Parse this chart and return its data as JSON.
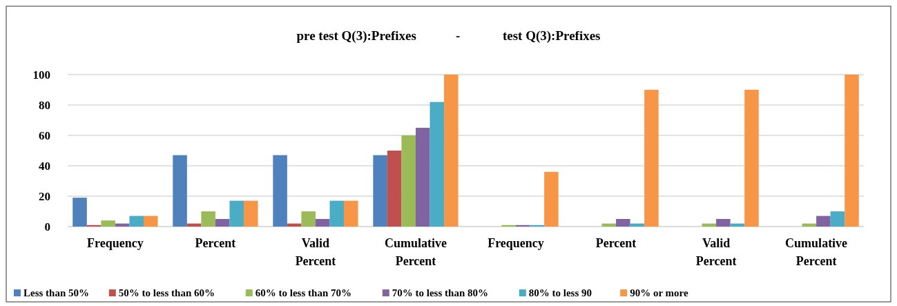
{
  "chart_data": {
    "type": "bar",
    "title": "pre test Q(3):Prefixes            -             test Q(3):Prefixes",
    "categories": [
      "Frequency",
      "Percent",
      "Valid Percent",
      "Cumulative Percent",
      "Frequency",
      "Percent",
      "Valid Percent",
      "Cumulative Percent"
    ],
    "series": [
      {
        "name": "Less than 50%",
        "color": "#4f81bd",
        "values": [
          19,
          47,
          47,
          47,
          null,
          null,
          null,
          null
        ]
      },
      {
        "name": "50% to less than 60%",
        "color": "#c0504d",
        "values": [
          1,
          2,
          2,
          50,
          null,
          null,
          null,
          null
        ]
      },
      {
        "name": "60% to less than 70%",
        "color": "#9bbb59",
        "values": [
          4,
          10,
          10,
          60,
          1,
          2,
          2,
          2
        ]
      },
      {
        "name": "70% to less than 80%",
        "color": "#8064a2",
        "values": [
          2,
          5,
          5,
          65,
          1,
          5,
          5,
          7
        ]
      },
      {
        "name": "80% to less 90",
        "color": "#4bacc6",
        "values": [
          7,
          17,
          17,
          82,
          1,
          2,
          2,
          10
        ]
      },
      {
        "name": "90% or more",
        "color": "#f79646",
        "values": [
          7,
          17,
          17,
          100,
          36,
          90,
          90,
          100
        ]
      }
    ],
    "ylim": [
      0,
      100
    ],
    "yticks": [
      0,
      20,
      40,
      60,
      80,
      100
    ],
    "grid": "y",
    "legend": "bottom"
  }
}
